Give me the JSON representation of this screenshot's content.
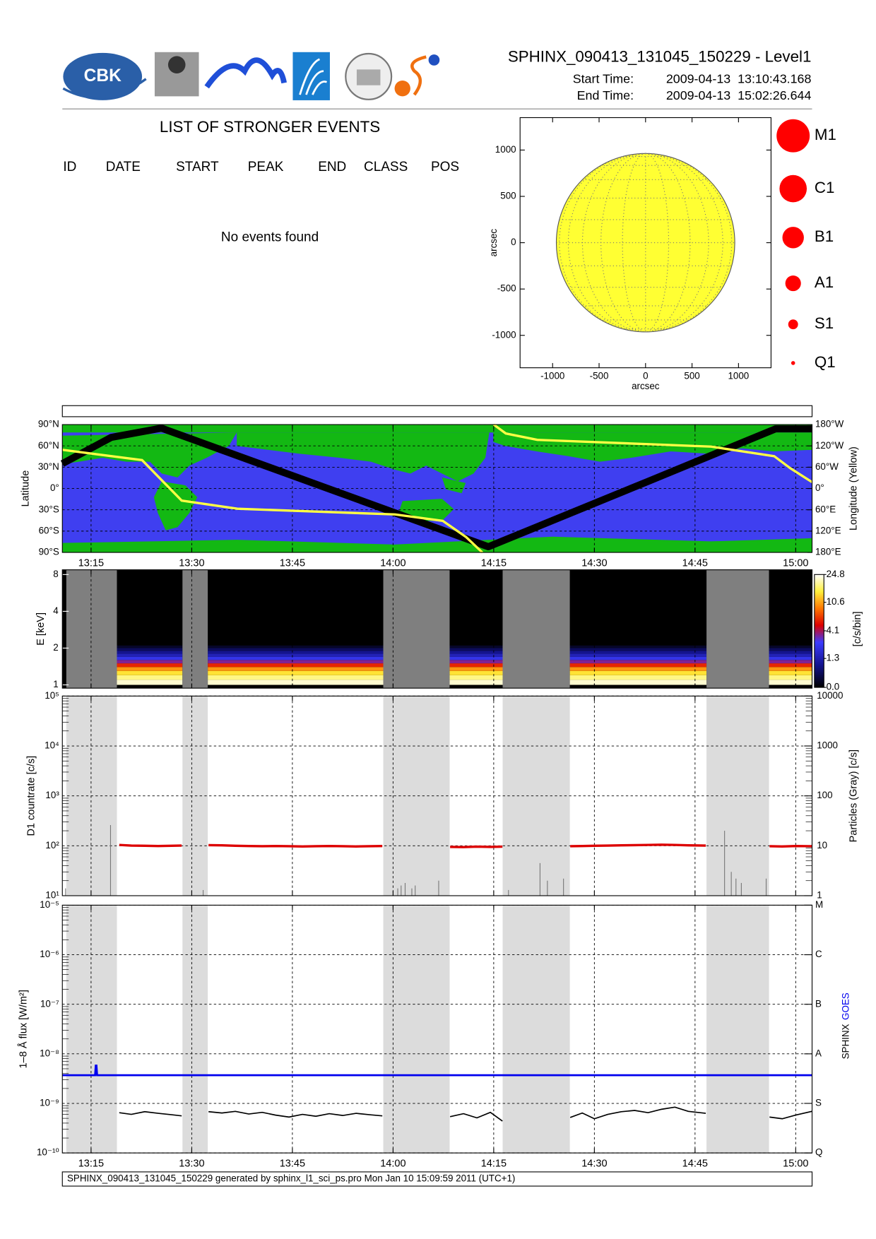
{
  "header": {
    "title": "SPHINX_090413_131045_150229 - Level1",
    "start_label": "Start Time:",
    "start": "2009-04-13  13:10:43.168",
    "end_label": "End Time:",
    "end": "2009-04-13  15:02:26.644",
    "logo_text": "CBK"
  },
  "events": {
    "title": "LIST OF STRONGER EVENTS",
    "columns": [
      "ID",
      "DATE",
      "START",
      "PEAK",
      "END",
      "CLASS",
      "POS"
    ],
    "message": "No events found"
  },
  "flare_classes": {
    "labels": [
      "M1",
      "C1",
      "B1",
      "A1",
      "S1",
      "Q1"
    ],
    "color": "#ff0000"
  },
  "footer": "SPHINX_090413_131045_150229 generated by sphinx_l1_sci_ps.pro Mon Jan 10 15:09:59 2011 (UTC+1)",
  "time_axis": {
    "xlim": [
      790.72,
      902.44
    ],
    "xticks": [
      {
        "value": 795,
        "label": "13:15"
      },
      {
        "value": 810,
        "label": "13:30"
      },
      {
        "value": 825,
        "label": "13:45"
      },
      {
        "value": 840,
        "label": "14:00"
      },
      {
        "value": 855,
        "label": "14:15"
      },
      {
        "value": 870,
        "label": "14:30"
      },
      {
        "value": 885,
        "label": "14:45"
      },
      {
        "value": 900,
        "label": "15:00"
      }
    ]
  },
  "night_intervals": [
    [
      791.31,
      798.85
    ],
    [
      808.62,
      812.39
    ],
    [
      838.54,
      848.43
    ],
    [
      856.33,
      866.34
    ],
    [
      886.71,
      896.02
    ]
  ],
  "chart_data": [
    {
      "type": "disk",
      "xlabel": "arcsec",
      "ylabel": "arcsec",
      "xlim": [
        -1350,
        1350
      ],
      "ylim": [
        -1350,
        1350
      ],
      "xticks": [
        -1000,
        -500,
        0,
        500,
        1000
      ],
      "yticks": [
        -1000,
        -500,
        0,
        500,
        1000
      ],
      "disk_radius": 960,
      "color": "#ffff33"
    },
    {
      "type": "map",
      "ylabel": "Latitude",
      "y2label": "Longitude (Yellow)",
      "ylim": [
        -90,
        90
      ],
      "yticks": [
        {
          "value": 90,
          "label": "90°N"
        },
        {
          "value": 60,
          "label": "60°N"
        },
        {
          "value": 30,
          "label": "30°N"
        },
        {
          "value": 0,
          "label": "0°"
        },
        {
          "value": -30,
          "label": "30°S"
        },
        {
          "value": -60,
          "label": "60°S"
        },
        {
          "value": -90,
          "label": "90°S"
        }
      ],
      "y2lim": [
        180,
        -180
      ],
      "y2ticks": [
        {
          "value": -180,
          "label": "180°W"
        },
        {
          "value": -120,
          "label": "120°W"
        },
        {
          "value": -60,
          "label": "60°W"
        },
        {
          "value": 0,
          "label": "0°"
        },
        {
          "value": 60,
          "label": "60°E"
        },
        {
          "value": 120,
          "label": "120°E"
        },
        {
          "value": 180,
          "label": "180°E"
        }
      ],
      "orbit": {
        "color": "#000000",
        "x": [
          790.72,
          798,
          805.5,
          830,
          854.2,
          878,
          897,
          902.44
        ],
        "values": [
          35,
          72,
          85,
          1,
          -82,
          10,
          84,
          84
        ]
      },
      "longitude": {
        "color": "#ffff44",
        "axis": "y2",
        "x": [
          790.72,
          802.6,
          808.5,
          816.8,
          840.3,
          847.4,
          850.9,
          853.3,
          854.2,
          855.0,
          856.8,
          861.5,
          887.4,
          896.8,
          899.2,
          902.44
        ],
        "values": [
          -109,
          -80,
          34,
          57,
          73,
          91,
          137,
          180,
          null,
          -180,
          -155,
          -137,
          -118,
          -91,
          -57,
          -18
        ]
      }
    },
    {
      "type": "spectrogram",
      "ylabel": "E [keV]",
      "zlabel": "[c/s/bin]",
      "log_y": true,
      "ylim": [
        0.94,
        8.75
      ],
      "yticks": [
        1,
        2,
        4,
        8
      ],
      "zlim": [
        0,
        24.8
      ],
      "zticks": [
        {
          "value": 0,
          "label": "0.0"
        },
        1.3,
        4.1,
        10.6,
        24.8
      ],
      "bins": [
        1.0,
        1.1,
        1.2,
        1.3,
        1.4,
        1.5,
        1.6,
        1.7,
        1.8,
        1.9,
        2.0,
        2.1
      ],
      "counts": [
        22,
        18,
        14,
        10,
        6,
        3.5,
        2.2,
        1.4,
        0.9,
        0.5,
        0.2
      ]
    },
    {
      "type": "line",
      "ylabel": "D1 countrate [c/s]",
      "y2label": "Particles (Gray) [c/s]",
      "log_y": true,
      "grid": true,
      "ylim": [
        10,
        100000
      ],
      "yticks": [
        {
          "value": 10,
          "label": "10¹"
        },
        {
          "value": 100,
          "label": "10²"
        },
        {
          "value": 1000,
          "label": "10³"
        },
        {
          "value": 10000,
          "label": "10⁴"
        },
        {
          "value": 100000,
          "label": "10⁵"
        }
      ],
      "y2lim": [
        1,
        10000
      ],
      "y2ticks": [
        1,
        10,
        100,
        1000,
        10000
      ],
      "color": "#dd0000",
      "x": [
        799.2,
        801,
        803,
        805,
        807,
        808.5,
        810,
        812.5,
        814.5,
        816.5,
        818.5,
        820.5,
        822.5,
        824.5,
        826.5,
        828.5,
        830.5,
        832.5,
        834.5,
        836.5,
        838.4,
        843,
        848.5,
        850.5,
        852.5,
        854.5,
        856.3,
        861,
        866.4,
        868.2,
        870,
        872,
        874,
        876,
        878,
        880,
        882,
        884,
        886.6,
        891,
        896.1,
        898,
        900,
        902.4
      ],
      "values": [
        104,
        101,
        100,
        99,
        100,
        101,
        null,
        103,
        102,
        100,
        99,
        98,
        99,
        98,
        97,
        98,
        99,
        98,
        97,
        98,
        99,
        null,
        95,
        94,
        96,
        95,
        96,
        null,
        98,
        99,
        100,
        101,
        102,
        103,
        104,
        105,
        104,
        102,
        101,
        null,
        98,
        97,
        99,
        98
      ],
      "particles": {
        "color": "#777777",
        "axis": "y2",
        "x": [
          791.2,
          797.9,
          811.7,
          840.7,
          841.2,
          841.8,
          842.8,
          843.3,
          846.8,
          857.2,
          861.9,
          863.0,
          865.4,
          889.4,
          890.4,
          891.1,
          891.9,
          895.6
        ],
        "values": [
          1.4,
          26,
          1.3,
          1.4,
          1.6,
          1.8,
          1.4,
          1.6,
          2.0,
          1.3,
          4.5,
          2.0,
          2.2,
          20,
          3.0,
          2.2,
          1.8,
          2.2
        ]
      }
    },
    {
      "type": "line",
      "ylabel": "1–8 Å flux [W/m²]",
      "log_y": true,
      "grid": true,
      "ylim": [
        1e-10,
        1e-05
      ],
      "yticks": [
        {
          "value": 1e-10,
          "label": "10⁻¹⁰"
        },
        {
          "value": 1e-09,
          "label": "10⁻⁹"
        },
        {
          "value": 1e-08,
          "label": "10⁻⁸"
        },
        {
          "value": 1e-07,
          "label": "10⁻⁷"
        },
        {
          "value": 1e-06,
          "label": "10⁻⁶"
        },
        {
          "value": 1e-05,
          "label": "10⁻⁵"
        }
      ],
      "class_ticks": [
        {
          "value": 1e-10,
          "label": "Q"
        },
        {
          "value": 1e-09,
          "label": "S"
        },
        {
          "value": 1e-08,
          "label": "A"
        },
        {
          "value": 1e-07,
          "label": "B"
        },
        {
          "value": 1e-06,
          "label": "C"
        },
        {
          "value": 1e-05,
          "label": "M"
        }
      ],
      "series": [
        {
          "name": "SPHINX",
          "color": "#000000",
          "x": [
            799.2,
            801,
            803,
            805,
            807,
            808.5,
            810,
            812.5,
            814.5,
            816.5,
            818.5,
            820.5,
            822.5,
            824.5,
            826.5,
            828.5,
            830.5,
            832.5,
            834.5,
            836.5,
            838.4,
            843,
            848.5,
            850.5,
            852.5,
            854.5,
            856.3,
            861,
            866.4,
            868.2,
            870,
            872,
            874,
            876,
            878,
            880,
            882,
            884,
            886.6,
            891,
            896.1,
            898,
            900,
            902.4
          ],
          "values": [
            6.5e-10,
            6e-10,
            6.8e-10,
            6.3e-10,
            5.9e-10,
            5.6e-10,
            null,
            6.8e-10,
            6.4e-10,
            6.9e-10,
            6.1e-10,
            6.6e-10,
            5.8e-10,
            5.3e-10,
            6e-10,
            5.5e-10,
            6.2e-10,
            5.7e-10,
            6.3e-10,
            5.9e-10,
            5.6e-10,
            null,
            5.4e-10,
            6.2e-10,
            5.1e-10,
            6.6e-10,
            4.4e-10,
            null,
            5.2e-10,
            6.4e-10,
            4.9e-10,
            6e-10,
            6.8e-10,
            7.2e-10,
            6.5e-10,
            7.6e-10,
            8.4e-10,
            6.9e-10,
            6.3e-10,
            null,
            5.3e-10,
            4.9e-10,
            5.8e-10,
            6.9e-10
          ]
        },
        {
          "name": "GOES",
          "color": "#0000ee",
          "x": [
            790.72,
            795.6,
            795.7,
            795.8,
            795.9,
            902.44
          ],
          "values": [
            3.7e-09,
            3.7e-09,
            5.8e-09,
            5.8e-09,
            3.7e-09,
            3.7e-09
          ]
        }
      ]
    }
  ]
}
